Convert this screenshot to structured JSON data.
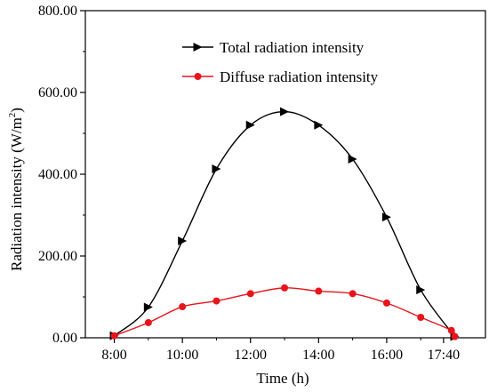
{
  "chart_data": {
    "type": "line",
    "xlabel": "Time (h)",
    "ylabel_main": "Radiation intensity (W/m",
    "ylabel_sup": "2",
    "ylabel_close": ")",
    "x_tick_labels": [
      {
        "x": 8,
        "label": "8:00"
      },
      {
        "x": 10,
        "label": "10:00"
      },
      {
        "x": 12,
        "label": "12:00"
      },
      {
        "x": 14,
        "label": "14:00"
      },
      {
        "x": 16,
        "label": "16:00"
      },
      {
        "x": 17.67,
        "label": "17:40"
      }
    ],
    "y_ticks": [
      {
        "value": 0,
        "label": "0.00"
      },
      {
        "value": 200,
        "label": "200.00"
      },
      {
        "value": 400,
        "label": "400.00"
      },
      {
        "value": 600,
        "label": "600.00"
      },
      {
        "value": 800,
        "label": "800.00"
      }
    ],
    "xlim": [
      7.15,
      18.9
    ],
    "ylim": [
      0,
      800
    ],
    "grid": false,
    "legend_position": "top-center",
    "series": [
      {
        "name": "Total radiation intensity",
        "color": "#000000",
        "marker": "triangle-right",
        "x": [
          8,
          9,
          10,
          11,
          12,
          13,
          14,
          15,
          16,
          17,
          18
        ],
        "y": [
          5,
          75,
          237,
          413,
          520,
          553,
          520,
          437,
          295,
          117,
          3
        ]
      },
      {
        "name": "Diffuse radiation intensity",
        "color": "#e8141b",
        "marker": "circle",
        "x": [
          8,
          9,
          10,
          11,
          12,
          13,
          14,
          15,
          16,
          17,
          17.9,
          18
        ],
        "y": [
          5,
          37,
          76,
          90,
          108,
          122,
          114,
          108,
          85,
          50,
          18,
          3
        ]
      }
    ]
  }
}
